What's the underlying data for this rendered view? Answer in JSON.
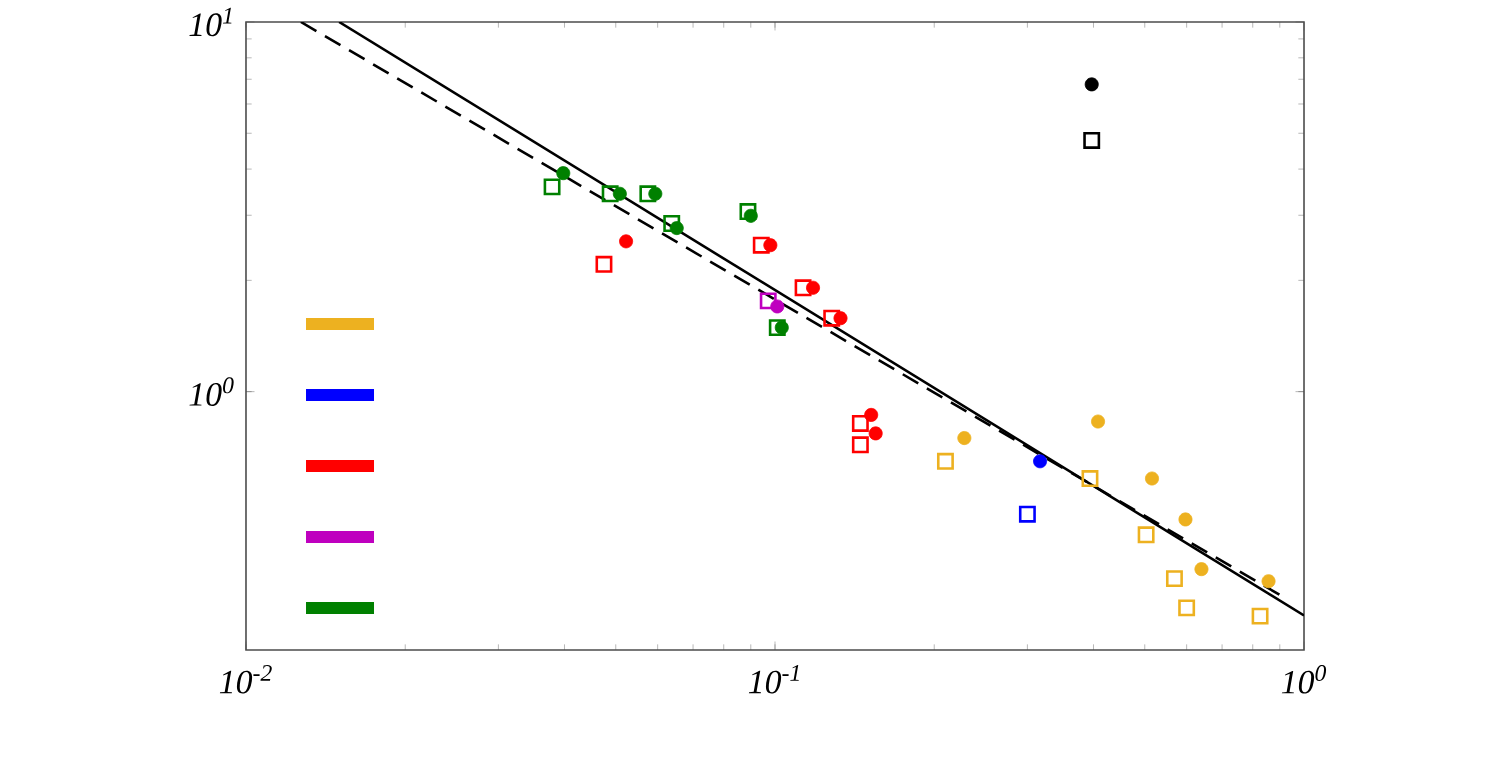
{
  "chart_data": {
    "type": "scatter",
    "log": "xy",
    "xlim": [
      0.01,
      1
    ],
    "ylim": [
      0.2,
      10
    ],
    "xticks": [
      {
        "value": 0.01,
        "label": "10$^{-2}$"
      },
      {
        "value": 0.1,
        "label": "10$^{-1}$"
      },
      {
        "value": 1,
        "label": "10$^{0}$"
      }
    ],
    "yticks": [
      {
        "value": 1,
        "label": "10$^{0}$"
      },
      {
        "value": 10,
        "label": "10$^{1}$"
      }
    ],
    "grid": false,
    "series": [
      {
        "marker": "circle",
        "color": "#edb120",
        "x": [
          0.228,
          0.408,
          0.516,
          0.597,
          0.64,
          0.857
        ],
        "values": [
          0.749,
          0.83,
          0.582,
          0.451,
          0.331,
          0.307
        ]
      },
      {
        "marker": "circle",
        "color": "#0000ff",
        "x": [
          0.317
        ],
        "values": [
          0.648
        ]
      },
      {
        "marker": "circle",
        "color": "#ff0000",
        "x": [
          0.0523,
          0.098,
          0.118,
          0.133,
          0.152,
          0.155
        ],
        "values": [
          2.55,
          2.49,
          1.91,
          1.58,
          0.865,
          0.771
        ]
      },
      {
        "marker": "circle",
        "color": "#bf00bf",
        "x": [
          0.101
        ],
        "values": [
          1.7
        ]
      },
      {
        "marker": "circle",
        "color": "#008000",
        "x": [
          0.0398,
          0.0509,
          0.0594,
          0.0652,
          0.09,
          0.103
        ],
        "values": [
          3.9,
          3.43,
          3.43,
          2.77,
          2.99,
          1.49
        ]
      },
      {
        "marker": "square",
        "color": "#edb120",
        "x": [
          0.21,
          0.394,
          0.503,
          0.569,
          0.6,
          0.826
        ],
        "values": [
          0.648,
          0.582,
          0.41,
          0.312,
          0.26,
          0.247
        ]
      },
      {
        "marker": "square",
        "color": "#0000ff",
        "x": [
          0.3
        ],
        "values": [
          0.466
        ]
      },
      {
        "marker": "square",
        "color": "#ff0000",
        "x": [
          0.0475,
          0.0942,
          0.113,
          0.128,
          0.145,
          0.145
        ],
        "values": [
          2.21,
          2.49,
          1.91,
          1.58,
          0.82,
          0.718
        ]
      },
      {
        "marker": "square",
        "color": "#bf00bf",
        "x": [
          0.0971
        ],
        "values": [
          1.76
        ]
      },
      {
        "marker": "square",
        "color": "#008000",
        "x": [
          0.0379,
          0.0488,
          0.0575,
          0.0638,
          0.0889,
          0.101
        ],
        "values": [
          3.58,
          3.43,
          3.43,
          2.85,
          3.07,
          1.49
        ]
      },
      {
        "marker": "circle",
        "color": "#000000",
        "x": [
          0.397
        ],
        "values": [
          6.78
        ]
      },
      {
        "marker": "square",
        "color": "#000000",
        "x": [
          0.397
        ],
        "values": [
          4.78
        ]
      },
      {
        "type": "line",
        "marker": "none",
        "line_style": "solid",
        "color": "#000000",
        "x": [
          0.015,
          1.0
        ],
        "values": [
          10,
          0.248
        ]
      },
      {
        "type": "line",
        "marker": "none",
        "line_style": "dashed",
        "color": "#000000",
        "x": [
          0.0127,
          0.927
        ],
        "values": [
          10,
          0.275
        ]
      }
    ]
  }
}
